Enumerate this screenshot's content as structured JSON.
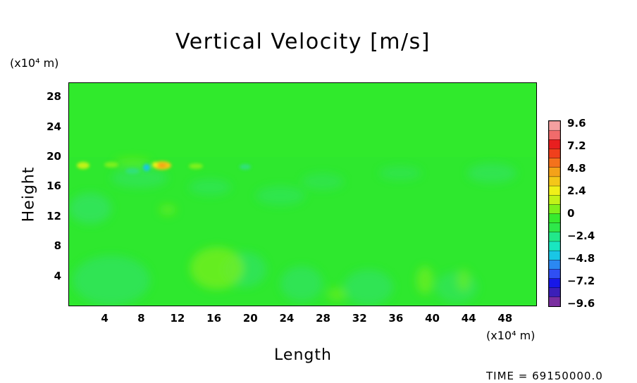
{
  "chart_data": {
    "type": "heatmap",
    "title": "Vertical Velocity [m/s]",
    "xlabel": "Length",
    "ylabel": "Height",
    "x_unit": "(x10⁴ m)",
    "y_unit": "(x10⁴ m)",
    "x_ticks": [
      "4",
      "8",
      "12",
      "16",
      "20",
      "24",
      "28",
      "32",
      "36",
      "40",
      "44",
      "48"
    ],
    "y_ticks": [
      "4",
      "8",
      "12",
      "16",
      "20",
      "24",
      "28"
    ],
    "xlim": [
      0,
      51.5
    ],
    "ylim": [
      0,
      30
    ],
    "colorbar": {
      "labels": [
        "9.6",
        "7.2",
        "4.8",
        "2.4",
        "0",
        "−2.4",
        "−4.8",
        "−7.2",
        "−9.6"
      ],
      "range": [
        -9.6,
        9.6
      ],
      "colors": [
        "#7a2fa0",
        "#3b1fb8",
        "#1717e8",
        "#2f4ff4",
        "#2b88f2",
        "#19c6e6",
        "#19e6c0",
        "#22e88a",
        "#2ee84a",
        "#36ea2e",
        "#7ef01c",
        "#c2f219",
        "#f0f019",
        "#f4c719",
        "#f4a219",
        "#f4721c",
        "#f0401c",
        "#e81f1f",
        "#f06b6b",
        "#f4a0a0"
      ]
    },
    "features": [
      {
        "x": 10,
        "y": 18.8,
        "value": 4.5
      },
      {
        "x": 2,
        "y": 18.5,
        "value": 1.8
      },
      {
        "x": 8.3,
        "y": 18.6,
        "value": -4.0
      },
      {
        "x": 16,
        "y": 5,
        "value": 1.2
      },
      {
        "x": 3.5,
        "y": 4,
        "value": -0.8
      },
      {
        "x": 21,
        "y": 5,
        "value": -1.2
      },
      {
        "x": 31,
        "y": 3,
        "value": -1.4
      },
      {
        "x": 44,
        "y": 17.5,
        "value": -1.2
      },
      {
        "x": 2.5,
        "y": 13,
        "value": -1.3
      }
    ]
  },
  "footer": {
    "time": "TIME = 69150000.0"
  }
}
